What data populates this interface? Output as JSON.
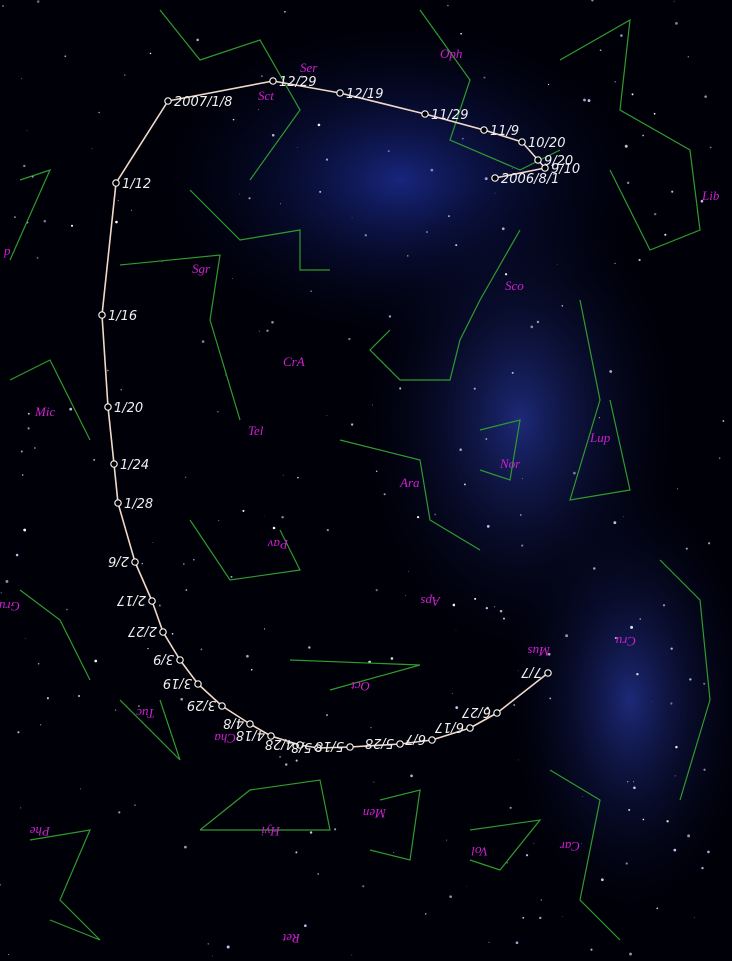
{
  "constellations": [
    "Oph",
    "Ser",
    "Sct",
    "Lib",
    "Sgr",
    "Sco",
    "CrA",
    "Mic",
    "Tel",
    "Lup",
    "Nor",
    "Ara",
    "Pav",
    "Aps",
    "Cru",
    "Gru",
    "Mus",
    "Oct",
    "Tuc",
    "Cha",
    "Hyi",
    "Men",
    "Vol",
    "Car",
    "Phe",
    "Ret",
    "p"
  ],
  "path_labels": [
    "2006/8/1",
    "9/10",
    "9/20",
    "10/20",
    "11/9",
    "11/29",
    "12/19",
    "12/29",
    "2007/1/8",
    "1/12",
    "1/16",
    "1/20",
    "1/24",
    "1/28",
    "2/6",
    "2/17",
    "2/27",
    "3/9",
    "3/19",
    "3/29",
    "4/8",
    "4/18",
    "4/28",
    "5/8",
    "5/18",
    "5/28",
    "6/7",
    "6/17",
    "6/27",
    "7/7"
  ]
}
